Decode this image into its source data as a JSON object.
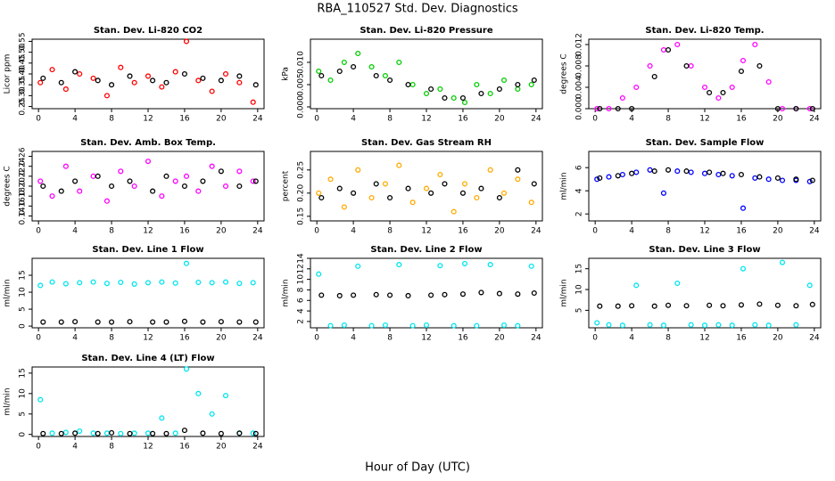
{
  "title": "RBA_110527  Std. Dev. Diagnostics",
  "x_label": "Hour of Day (UTC)",
  "chart_data": [
    {
      "type": "scatter",
      "title": "Stan. Dev. Li-820 CO2",
      "y_label": "Licor ppm",
      "xlim": [
        -0.7,
        24.7
      ],
      "xticks": [
        0,
        4,
        8,
        12,
        16,
        20,
        24
      ],
      "ylim": [
        0.24,
        0.56
      ],
      "yticks": [
        0.25,
        {
          "value": 0.3,
          "label": "0.30"
        },
        0.35,
        {
          "value": 0.4,
          "label": "0.40"
        },
        0.45,
        {
          "value": 0.5,
          "label": "0.50"
        },
        0.55
      ],
      "series": [
        {
          "color": "#ff0000",
          "x": [
            0.2,
            1.5,
            3,
            4.5,
            6,
            7.5,
            9,
            10.5,
            12,
            13.5,
            15,
            16.2,
            17.5,
            19,
            20.5,
            22,
            23.5
          ],
          "values": [
            0.36,
            0.42,
            0.33,
            0.4,
            0.38,
            0.3,
            0.43,
            0.36,
            0.39,
            0.34,
            0.41,
            0.55,
            0.37,
            0.32,
            0.4,
            0.36,
            0.27
          ]
        },
        {
          "color": "#000000",
          "x": [
            0.5,
            2.5,
            4,
            6.5,
            8,
            10,
            12.5,
            14,
            16,
            18,
            20,
            22,
            23.8
          ],
          "values": [
            0.38,
            0.36,
            0.41,
            0.37,
            0.35,
            0.39,
            0.37,
            0.36,
            0.4,
            0.38,
            0.37,
            0.39,
            0.35
          ]
        }
      ]
    },
    {
      "type": "scatter",
      "title": "Stan. Dev. Li-820 Pressure",
      "y_label": "kPa",
      "xlim": [
        -0.7,
        24.7
      ],
      "xticks": [
        0,
        4,
        8,
        12,
        16,
        20,
        24
      ],
      "ylim": [
        -0.0004,
        0.0152
      ],
      "yticks": [
        {
          "value": 0,
          "label": "0.000"
        },
        {
          "value": 0.005,
          "label": "0.005"
        },
        {
          "value": 0.01,
          "label": "0.010"
        }
      ],
      "series": [
        {
          "color": "#00cc00",
          "x": [
            0.2,
            1.5,
            3,
            4.5,
            6,
            7.5,
            9,
            10.5,
            12,
            13.5,
            15,
            16.2,
            17.5,
            19,
            20.5,
            22,
            23.5
          ],
          "values": [
            0.008,
            0.006,
            0.01,
            0.012,
            0.009,
            0.007,
            0.01,
            0.005,
            0.003,
            0.004,
            0.002,
            0.001,
            0.005,
            0.003,
            0.006,
            0.004,
            0.005
          ]
        },
        {
          "color": "#000000",
          "x": [
            0.5,
            2.5,
            4,
            6.5,
            8,
            10,
            12.5,
            14,
            16,
            18,
            20,
            22,
            23.8
          ],
          "values": [
            0.007,
            0.008,
            0.009,
            0.007,
            0.006,
            0.005,
            0.004,
            0.002,
            0.002,
            0.003,
            0.004,
            0.005,
            0.006
          ]
        }
      ]
    },
    {
      "type": "scatter",
      "title": "Stan. Dev. Li-820 Temp.",
      "y_label": "degrees C",
      "xlim": [
        -0.7,
        24.7
      ],
      "xticks": [
        0,
        4,
        8,
        12,
        16,
        20,
        24
      ],
      "ylim": [
        0,
        0.013
      ],
      "yticks": [
        {
          "value": 0,
          "label": "0.000"
        },
        0.004,
        0.008,
        0.012
      ],
      "series": [
        {
          "color": "#ff00ff",
          "x": [
            0.2,
            1.5,
            3,
            4.5,
            6,
            7.5,
            9,
            10.5,
            12,
            13.5,
            15,
            16.2,
            17.5,
            19,
            20.5,
            22,
            23.5
          ],
          "values": [
            0,
            0,
            0.002,
            0.004,
            0.008,
            0.011,
            0.012,
            0.008,
            0.004,
            0.002,
            0.004,
            0.009,
            0.012,
            0.005,
            0,
            0,
            0
          ]
        },
        {
          "color": "#000000",
          "x": [
            0.5,
            2.5,
            4,
            6.5,
            8,
            10,
            12.5,
            14,
            16,
            18,
            20,
            22,
            23.8
          ],
          "values": [
            0,
            0,
            0,
            0.006,
            0.011,
            0.008,
            0.003,
            0.003,
            0.007,
            0.008,
            0,
            0,
            0
          ]
        }
      ]
    },
    {
      "type": "scatter",
      "title": "Stan. Dev. Amb. Box Temp.",
      "y_label": "degrees C",
      "xlim": [
        -0.7,
        24.7
      ],
      "xticks": [
        0,
        4,
        8,
        12,
        16,
        20,
        24
      ],
      "ylim": [
        0.13,
        0.27
      ],
      "yticks": [
        0.14,
        0.16,
        0.18,
        {
          "value": 0.2,
          "label": "0.20"
        },
        0.22,
        0.24,
        0.26
      ],
      "series": [
        {
          "color": "#ff00ff",
          "x": [
            0.2,
            1.5,
            3,
            4.5,
            6,
            7.5,
            9,
            10.5,
            12,
            13.5,
            15,
            16.2,
            17.5,
            19,
            20.5,
            22,
            23.5
          ],
          "values": [
            0.21,
            0.18,
            0.24,
            0.19,
            0.22,
            0.17,
            0.23,
            0.2,
            0.25,
            0.18,
            0.21,
            0.22,
            0.19,
            0.24,
            0.2,
            0.23,
            0.21
          ]
        },
        {
          "color": "#000000",
          "x": [
            0.5,
            2.5,
            4,
            6.5,
            8,
            10,
            12.5,
            14,
            16,
            18,
            20,
            22,
            23.8
          ],
          "values": [
            0.2,
            0.19,
            0.21,
            0.22,
            0.2,
            0.21,
            0.19,
            0.22,
            0.2,
            0.21,
            0.23,
            0.2,
            0.21
          ]
        }
      ]
    },
    {
      "type": "scatter",
      "title": "Stan. Dev. Gas Stream RH",
      "y_label": "percent",
      "xlim": [
        -0.7,
        24.7
      ],
      "xticks": [
        0,
        4,
        8,
        12,
        16,
        20,
        24
      ],
      "ylim": [
        0.14,
        0.29
      ],
      "yticks": [
        0.15,
        {
          "value": 0.2,
          "label": "0.20"
        },
        0.25
      ],
      "series": [
        {
          "color": "#ffaa00",
          "x": [
            0.2,
            1.5,
            3,
            4.5,
            6,
            7.5,
            9,
            10.5,
            12,
            13.5,
            15,
            16.2,
            17.5,
            19,
            20.5,
            22,
            23.5
          ],
          "values": [
            0.2,
            0.23,
            0.17,
            0.25,
            0.19,
            0.22,
            0.26,
            0.18,
            0.21,
            0.24,
            0.16,
            0.22,
            0.19,
            0.25,
            0.2,
            0.23,
            0.18
          ]
        },
        {
          "color": "#000000",
          "x": [
            0.5,
            2.5,
            4,
            6.5,
            8,
            10,
            12.5,
            14,
            16,
            18,
            20,
            22,
            23.8
          ],
          "values": [
            0.19,
            0.21,
            0.2,
            0.22,
            0.19,
            0.21,
            0.2,
            0.22,
            0.2,
            0.21,
            0.19,
            0.25,
            0.22
          ]
        }
      ]
    },
    {
      "type": "scatter",
      "title": "Stan. Dev. Sample Flow",
      "y_label": "ml/min",
      "xlim": [
        -0.7,
        24.7
      ],
      "xticks": [
        0,
        4,
        8,
        12,
        16,
        20,
        24
      ],
      "ylim": [
        1.4,
        7.4
      ],
      "yticks": [
        2,
        4,
        6
      ],
      "series": [
        {
          "color": "#0000ff",
          "x": [
            0.2,
            1.5,
            3,
            4.5,
            6,
            7.5,
            9,
            10.5,
            12,
            13.5,
            15,
            16.2,
            17.5,
            19,
            20.5,
            22,
            23.5
          ],
          "values": [
            5.0,
            5.2,
            5.4,
            5.6,
            5.8,
            3.8,
            5.7,
            5.6,
            5.5,
            5.4,
            5.3,
            2.5,
            5.1,
            5.0,
            4.9,
            4.9,
            4.8
          ]
        },
        {
          "color": "#000000",
          "x": [
            0.5,
            2.5,
            4,
            6.5,
            8,
            10,
            12.5,
            14,
            16,
            18,
            20,
            22,
            23.8
          ],
          "values": [
            5.1,
            5.3,
            5.5,
            5.7,
            5.8,
            5.7,
            5.6,
            5.5,
            5.4,
            5.2,
            5.1,
            5.0,
            4.9
          ]
        }
      ]
    },
    {
      "type": "scatter",
      "title": "Stan. Dev. Line 1 Flow",
      "y_label": "ml/min",
      "xlim": [
        -0.7,
        24.7
      ],
      "xticks": [
        0,
        4,
        8,
        12,
        16,
        20,
        24
      ],
      "ylim": [
        -0.5,
        20
      ],
      "yticks": [
        0,
        5,
        10,
        15
      ],
      "series": [
        {
          "color": "#00e5ee",
          "x": [
            0.2,
            1.5,
            3,
            4.5,
            6,
            7.5,
            9,
            10.5,
            12,
            13.5,
            15,
            16.2,
            17.5,
            19,
            20.5,
            22,
            23.5
          ],
          "values": [
            12,
            13,
            12.5,
            12.8,
            13,
            12.6,
            12.9,
            12.4,
            12.8,
            13,
            12.7,
            18.5,
            12.9,
            12.8,
            13,
            12.6,
            12.8
          ]
        },
        {
          "color": "#000000",
          "x": [
            0.5,
            2.5,
            4,
            6.5,
            8,
            10,
            12.5,
            14,
            16,
            18,
            20,
            22,
            23.8
          ],
          "values": [
            1.2,
            1.2,
            1.3,
            1.2,
            1.2,
            1.3,
            1.2,
            1.2,
            1.4,
            1.2,
            1.3,
            1.2,
            1.2
          ]
        }
      ]
    },
    {
      "type": "scatter",
      "title": "Stan. Dev. Line 2 Flow",
      "y_label": "ml/min",
      "xlim": [
        -0.7,
        24.7
      ],
      "xticks": [
        0,
        4,
        8,
        12,
        16,
        20,
        24
      ],
      "ylim": [
        0.8,
        14
      ],
      "yticks": [
        2,
        4,
        6,
        8,
        10,
        12,
        14
      ],
      "series": [
        {
          "color": "#00e5ee",
          "x": [
            0.2,
            1.5,
            3,
            4.5,
            6,
            7.5,
            9,
            10.5,
            12,
            13.5,
            15,
            16.2,
            17.5,
            19,
            20.5,
            22,
            23.5
          ],
          "values": [
            11,
            1.2,
            1.3,
            12.5,
            1.2,
            1.3,
            12.8,
            1.2,
            1.3,
            12.6,
            1.2,
            13,
            1.2,
            12.8,
            1.3,
            1.2,
            12.5
          ]
        },
        {
          "color": "#000000",
          "x": [
            0.5,
            2.5,
            4,
            6.5,
            8,
            10,
            12.5,
            14,
            16,
            18,
            20,
            22,
            23.8
          ],
          "values": [
            7,
            6.9,
            7,
            7.1,
            7,
            6.9,
            7,
            7.1,
            7.2,
            7.5,
            7.3,
            7.2,
            7.4
          ]
        }
      ]
    },
    {
      "type": "scatter",
      "title": "Stan. Dev. Line 3 Flow",
      "y_label": "ml/min",
      "xlim": [
        -0.7,
        24.7
      ],
      "xticks": [
        0,
        4,
        8,
        12,
        16,
        20,
        24
      ],
      "ylim": [
        0.8,
        17.5
      ],
      "yticks": [
        5,
        10,
        15
      ],
      "series": [
        {
          "color": "#00e5ee",
          "x": [
            0.2,
            1.5,
            3,
            4.5,
            6,
            7.5,
            9,
            10.5,
            12,
            13.5,
            15,
            16.2,
            17.5,
            19,
            20.5,
            22,
            23.5
          ],
          "values": [
            2,
            1.5,
            1.4,
            11,
            1.5,
            1.4,
            11.5,
            1.5,
            1.4,
            1.5,
            1.4,
            15,
            1.5,
            1.4,
            16.5,
            1.5,
            11
          ]
        },
        {
          "color": "#000000",
          "x": [
            0.5,
            2.5,
            4,
            6.5,
            8,
            10,
            12.5,
            14,
            16,
            18,
            20,
            22,
            23.8
          ],
          "values": [
            6,
            6,
            6.1,
            6,
            6.2,
            6.1,
            6.2,
            6.1,
            6.3,
            6.5,
            6.2,
            6.1,
            6.4
          ]
        }
      ]
    },
    {
      "type": "scatter",
      "title": "Stan. Dev. Line 4 (LT) Flow",
      "y_label": "ml/min",
      "xlim": [
        -0.7,
        24.7
      ],
      "xticks": [
        0,
        4,
        8,
        12,
        16,
        20,
        24
      ],
      "ylim": [
        -0.5,
        16.5
      ],
      "yticks": [
        0,
        5,
        10,
        15
      ],
      "series": [
        {
          "color": "#00e5ee",
          "x": [
            0.2,
            1.5,
            3,
            4.5,
            6,
            7.5,
            9,
            10.5,
            12,
            13.5,
            15,
            16.2,
            17.5,
            19,
            20.5,
            22,
            23.5
          ],
          "values": [
            8.5,
            0.3,
            0.5,
            0.8,
            0.3,
            0.3,
            0.2,
            0.3,
            0.3,
            4,
            0.3,
            16,
            10,
            5,
            9.5,
            0.3,
            0.3
          ]
        },
        {
          "color": "#000000",
          "x": [
            0.5,
            2.5,
            4,
            6.5,
            8,
            10,
            12.5,
            14,
            16,
            18,
            20,
            22,
            23.8
          ],
          "values": [
            0.2,
            0.2,
            0.3,
            0.2,
            0.4,
            0.2,
            0.2,
            0.2,
            1,
            0.3,
            0.2,
            0.3,
            0.2
          ]
        }
      ]
    }
  ]
}
